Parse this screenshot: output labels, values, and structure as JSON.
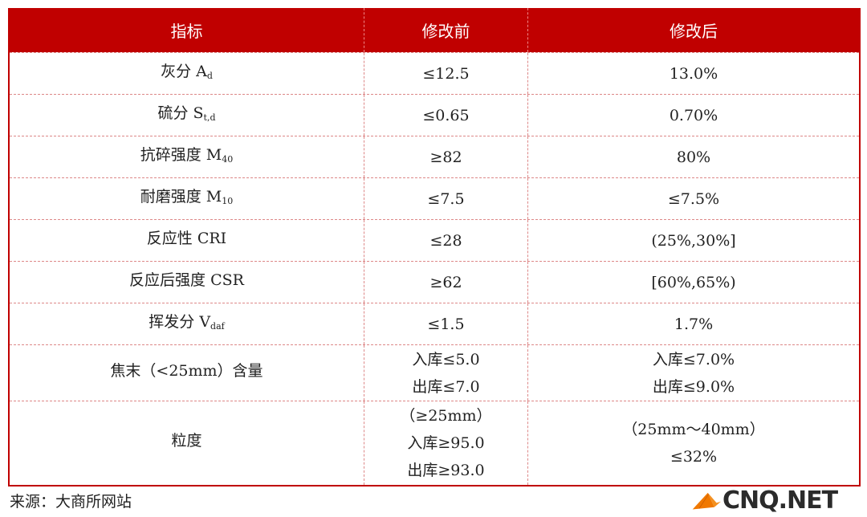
{
  "table": {
    "headers": [
      "指标",
      "修改前",
      "修改后"
    ],
    "rows": [
      {
        "name": "灰分 A",
        "sub": "d",
        "before": [
          "≤12.5"
        ],
        "after": [
          "13.0%"
        ]
      },
      {
        "name": "硫分 S",
        "sub": "t,d",
        "before": [
          "≤0.65"
        ],
        "after": [
          "0.70%"
        ]
      },
      {
        "name": "抗碎强度 M",
        "sub": "40",
        "before": [
          "≥82"
        ],
        "after": [
          "80%"
        ]
      },
      {
        "name": "耐磨强度 M",
        "sub": "10",
        "before": [
          "≤7.5"
        ],
        "after": [
          "≤7.5%"
        ]
      },
      {
        "name": "反应性 CRI",
        "sub": "",
        "before": [
          "≤28"
        ],
        "after": [
          "(25%,30%]"
        ]
      },
      {
        "name": "反应后强度 CSR",
        "sub": "",
        "before": [
          "≥62"
        ],
        "after": [
          "[60%,65%)"
        ]
      },
      {
        "name": "挥发分 V",
        "sub": "daf",
        "before": [
          "≤1.5"
        ],
        "after": [
          "1.7%"
        ]
      },
      {
        "name": "焦末（<25mm）含量",
        "sub": "",
        "before": [
          "入库≤5.0",
          "出库≤7.0"
        ],
        "after": [
          "入库≤7.0%",
          "出库≤9.0%"
        ]
      },
      {
        "name": "粒度",
        "sub": "",
        "before": [
          "（≥25mm）",
          "入库≥95.0",
          "出库≥93.0"
        ],
        "after": [
          "（25mm～40mm）",
          "≤32%"
        ]
      }
    ]
  },
  "source": "来源：大商所网站",
  "watermark": {
    "text": "CNQ.NET",
    "logo_color": "#f07800"
  }
}
